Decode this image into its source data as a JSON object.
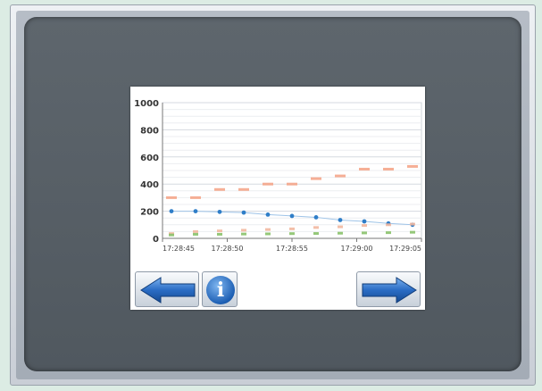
{
  "device": {
    "screen": {
      "chart_data": {
        "type": "scatter",
        "title": "",
        "xlabel": "",
        "ylabel": "",
        "ylim": [
          0,
          1000
        ],
        "y_ticks": [
          0,
          200,
          400,
          600,
          800,
          1000
        ],
        "x_ticks": [
          "17:28:45",
          "17:28:50",
          "17:28:55",
          "17:29:00",
          "17:29:05"
        ],
        "grid": true,
        "x_count": 11,
        "series": [
          {
            "color": "#f4a184",
            "values": [
              300,
              300,
              360,
              360,
              400,
              400,
              440,
              460,
              510,
              510,
              530
            ]
          },
          {
            "color": "#2f7ec8",
            "values": [
              200,
              200,
              195,
              190,
              175,
              165,
              155,
              135,
              125,
              110,
              100
            ]
          },
          {
            "color": "#f2b8a0",
            "values": [
              35,
              50,
              55,
              60,
              65,
              70,
              80,
              85,
              95,
              100,
              105
            ]
          },
          {
            "color": "#8ac26a",
            "values": [
              25,
              30,
              30,
              32,
              33,
              35,
              36,
              38,
              40,
              42,
              45
            ]
          }
        ],
        "trend_color": "#9fc4e8"
      },
      "buttons": {
        "prev_icon": "left-arrow-icon",
        "info_icon": "info-icon",
        "info_glyph": "i",
        "next_icon": "right-arrow-icon"
      }
    }
  }
}
